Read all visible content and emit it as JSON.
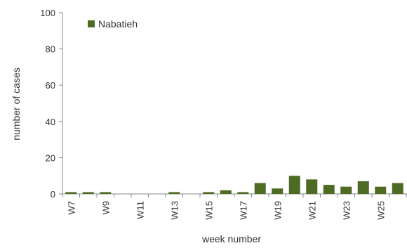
{
  "chart_data": {
    "type": "bar",
    "title": "",
    "xlabel": "week number",
    "ylabel": "number of cases",
    "ylim": [
      0,
      100
    ],
    "yticks": [
      0,
      20,
      40,
      60,
      80,
      100
    ],
    "grid": false,
    "legend_position": "top-left",
    "categories": [
      "W7",
      "W8",
      "W9",
      "W10",
      "W11",
      "W12",
      "W13",
      "W14",
      "W15",
      "W16",
      "W17",
      "W18",
      "W19",
      "W20",
      "W21",
      "W22",
      "W23",
      "W24",
      "W25",
      "W26"
    ],
    "category_labels_shown": [
      "W7",
      "W9",
      "W11",
      "W13",
      "W15",
      "W17",
      "W19",
      "W21",
      "W23",
      "W25"
    ],
    "series": [
      {
        "name": "Nabatieh",
        "color": "#4e6b24",
        "values": [
          1,
          1,
          1,
          0,
          0,
          0,
          1,
          0,
          1,
          2,
          1,
          6,
          3,
          10,
          8,
          5,
          4,
          7,
          4,
          6
        ]
      }
    ]
  }
}
